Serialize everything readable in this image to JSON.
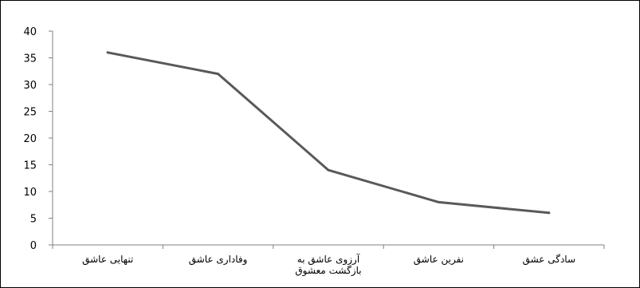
{
  "chart_data": {
    "type": "line",
    "title": "",
    "categories": [
      "تنهایی عاشق",
      "وفاداری عاشق",
      "آرزوی عاشق به بازگشت معشوق",
      "نفرین عاشق",
      "سادگی عشق"
    ],
    "category_lines": [
      [
        "تنهایی عاشق"
      ],
      [
        "وفاداری عاشق"
      ],
      [
        "آرزوی عاشق به",
        "بازگشت معشوق"
      ],
      [
        "نفرین عاشق"
      ],
      [
        "سادگی عشق"
      ]
    ],
    "series": [
      {
        "values": [
          36,
          32,
          14,
          8,
          6
        ]
      }
    ],
    "ylim": [
      0,
      40
    ],
    "yticks": [
      0,
      5,
      10,
      15,
      20,
      25,
      30,
      35,
      40
    ],
    "xlabel": "",
    "ylabel": "",
    "grid": false,
    "legend": "none",
    "line_color": "#595959"
  }
}
